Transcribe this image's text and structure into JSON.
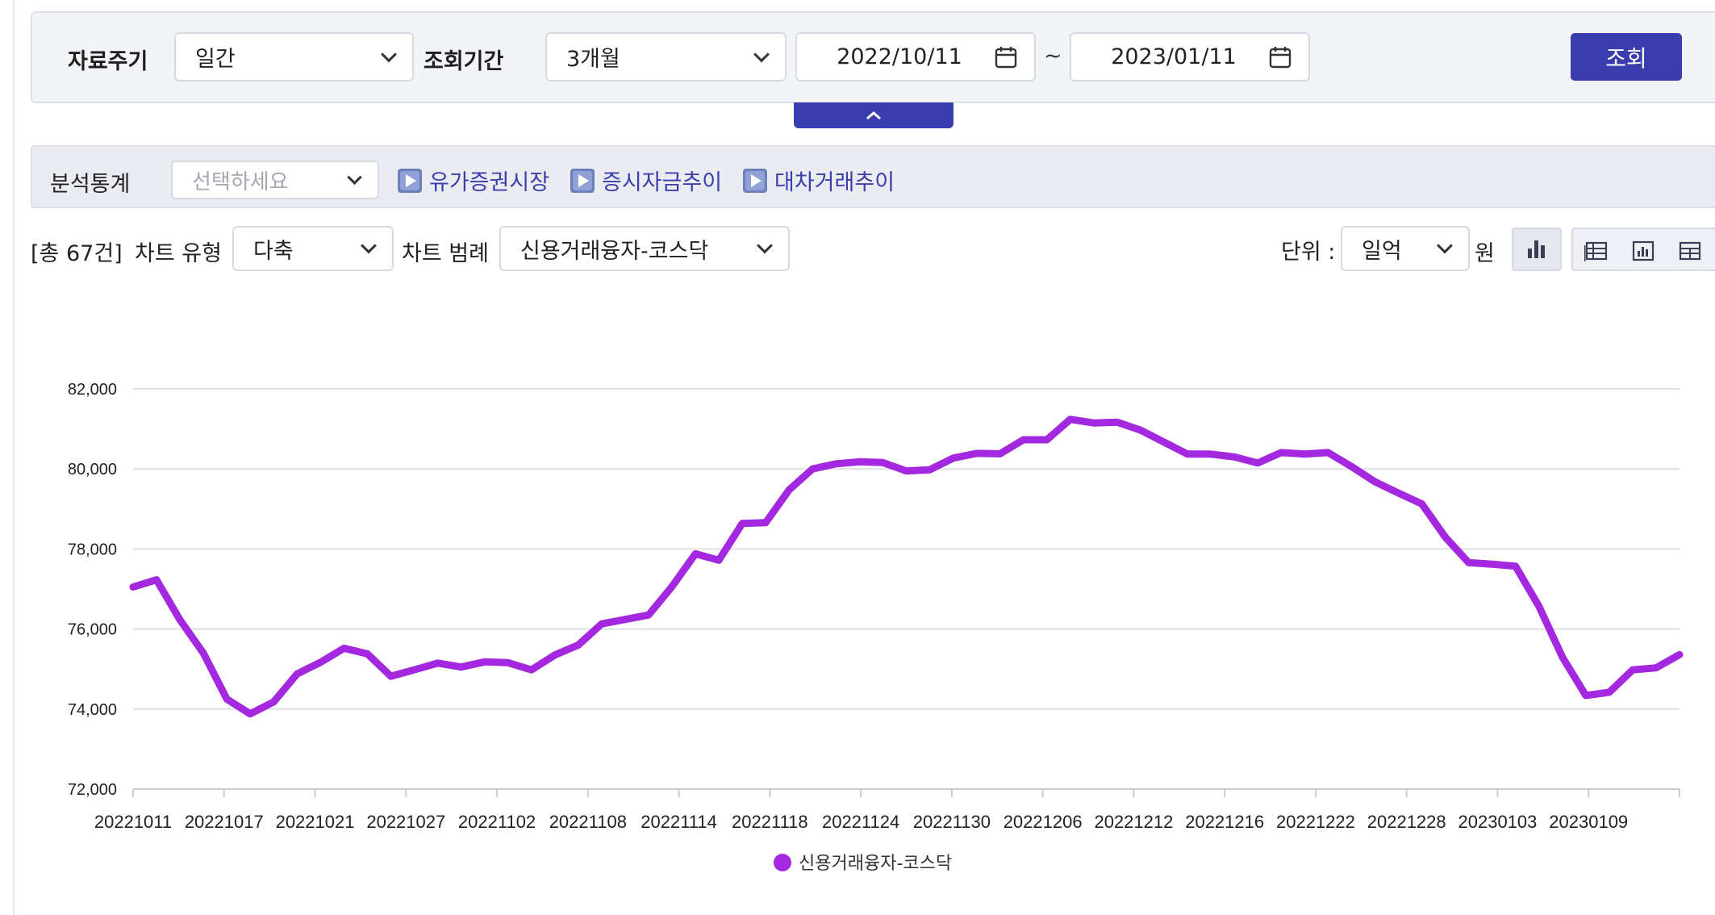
{
  "search": {
    "period_label": "자료주기",
    "period_value": "일간",
    "range_label": "조회기간",
    "range_value": "3개월",
    "date_from": "2022/10/11",
    "date_sep": "~",
    "date_to": "2023/01/11",
    "search_button": "조회"
  },
  "analysis": {
    "label": "분석통계",
    "select_placeholder": "선택하세요",
    "links": [
      "유가증권시장",
      "증시자금추이",
      "대차거래추이"
    ]
  },
  "toolbar": {
    "total_count": "[총 67건]",
    "chart_type_label": "차트 유형",
    "chart_type_value": "다축",
    "legend_label": "차트 범례",
    "legend_value": "신용거래융자-코스닥",
    "unit_label": "단위 :",
    "unit_value": "일억",
    "unit_suffix": "원"
  },
  "colors": {
    "accent": "#3a3dad",
    "series": "#a328e0"
  },
  "icons": {
    "period_select": "chevron-down-icon",
    "calendar": "calendar-icon",
    "collapse": "chevron-up-icon",
    "quick_link": "play-icon",
    "chart_view": "bar-chart-icon",
    "table_view": "table-icon"
  },
  "chart_data": {
    "type": "line",
    "title": "",
    "xlabel": "",
    "ylabel": "",
    "ylim": [
      72000,
      82000
    ],
    "y_ticks": [
      "72,000",
      "74,000",
      "76,000",
      "78,000",
      "80,000",
      "82,000"
    ],
    "x_tick_labels": [
      "20221011",
      "20221017",
      "20221021",
      "20221027",
      "20221102",
      "20221108",
      "20221114",
      "20221118",
      "20221124",
      "20221130",
      "20221206",
      "20221212",
      "20221216",
      "20221222",
      "20221228",
      "20230103",
      "20230109"
    ],
    "grid": true,
    "legend_position": "bottom",
    "series": [
      {
        "name": "신용거래융자-코스닥",
        "color": "#a328e0",
        "values": [
          77050,
          77230,
          76230,
          75400,
          74250,
          73880,
          74180,
          74880,
          75170,
          75520,
          75380,
          74820,
          74980,
          75150,
          75050,
          75180,
          75160,
          74980,
          75350,
          75600,
          76130,
          76240,
          76350,
          77060,
          77880,
          77720,
          78640,
          78660,
          79480,
          80000,
          80130,
          80180,
          80160,
          79950,
          79980,
          80270,
          80390,
          80380,
          80730,
          80730,
          81240,
          81150,
          81170,
          80970,
          80670,
          80370,
          80370,
          80300,
          80150,
          80410,
          80370,
          80410,
          80060,
          79680,
          79400,
          79130,
          78300,
          77660,
          77620,
          77570,
          76570,
          75300,
          74340,
          74420,
          74980,
          75030,
          75360
        ]
      }
    ]
  }
}
